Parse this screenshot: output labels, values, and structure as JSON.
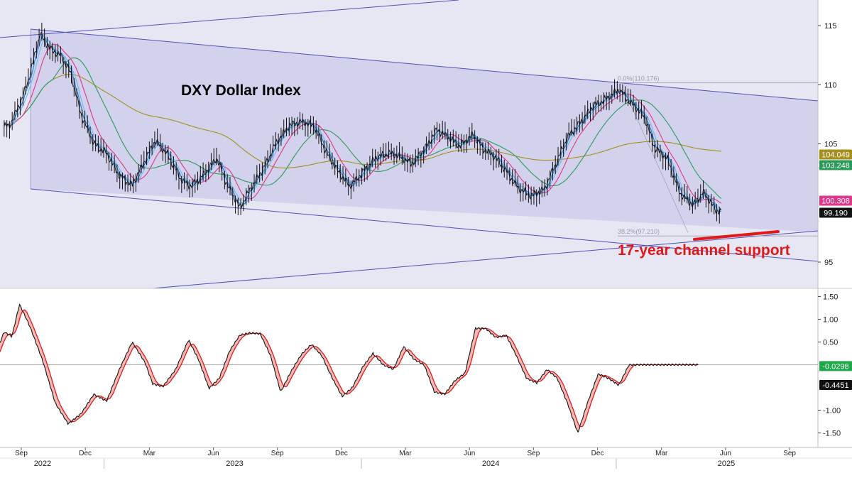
{
  "chart_data": [
    {
      "type": "line",
      "title": "DXY Dollar Index",
      "annotation": "17-year channel support",
      "ylim": [
        93,
        118
      ],
      "y_ticks": [
        115,
        110,
        105,
        95
      ],
      "last_value_labels": [
        {
          "text": "104.049",
          "value": 104.049,
          "bg": "#a68f1c",
          "fg": "#ffffff"
        },
        {
          "text": "103.248",
          "value": 103.248,
          "bg": "#2a9a5a",
          "fg": "#ffffff"
        },
        {
          "text": "100.308",
          "value": 100.308,
          "bg": "#e0358c",
          "fg": "#ffffff"
        },
        {
          "text": "99.190",
          "value": 99.19,
          "bg": "#111111",
          "fg": "#ffffff"
        }
      ],
      "fib_labels": [
        {
          "text": "0.0%(110.176)",
          "value": 110.176
        },
        {
          "text": "38.2%(97.210)",
          "value": 97.21
        }
      ],
      "price": {
        "x": [
          2022.62,
          2022.67,
          2022.7,
          2022.74,
          2022.78,
          2022.82,
          2022.86,
          2022.9,
          2022.95,
          2023.0,
          2023.05,
          2023.1,
          2023.14,
          2023.19,
          2023.24,
          2023.29,
          2023.33,
          2023.38,
          2023.43,
          2023.47,
          2023.52,
          2023.57,
          2023.62,
          2023.66,
          2023.71,
          2023.76,
          2023.81,
          2023.86,
          2023.9,
          2023.95,
          2024.0,
          2024.05,
          2024.1,
          2024.14,
          2024.19,
          2024.24,
          2024.29,
          2024.33,
          2024.38,
          2024.43,
          2024.47,
          2024.52,
          2024.57,
          2024.61,
          2024.66,
          2024.71,
          2024.76,
          2024.8,
          2024.85,
          2024.9,
          2024.95,
          2025.0,
          2025.02,
          2025.05,
          2025.1,
          2025.14,
          2025.19,
          2025.24,
          2025.29,
          2025.33,
          2025.38,
          2025.4
        ],
        "values": [
          106.5,
          108.8,
          110.8,
          114.3,
          113.0,
          112.5,
          111.0,
          107.5,
          105.0,
          104.2,
          102.3,
          101.5,
          103.2,
          105.3,
          104.0,
          102.0,
          101.4,
          102.4,
          103.8,
          101.6,
          99.6,
          101.5,
          103.2,
          105.0,
          106.5,
          106.9,
          106.5,
          104.2,
          102.8,
          101.4,
          102.6,
          103.8,
          104.2,
          104.0,
          103.3,
          104.5,
          106.2,
          105.6,
          104.8,
          105.8,
          104.6,
          103.8,
          102.4,
          101.2,
          100.6,
          101.2,
          103.6,
          105.6,
          106.8,
          108.2,
          108.8,
          109.6,
          109.1,
          108.4,
          107.3,
          104.7,
          103.7,
          100.8,
          99.8,
          100.9,
          99.4,
          99.19
        ]
      },
      "ma_blue_fast": {
        "name": "",
        "color": "#2f86d8",
        "last": 99.8
      },
      "ma_magenta": {
        "name": "",
        "color": "#e0358c",
        "last": 100.308
      },
      "ma_green": {
        "name": "",
        "color": "#2a9a5a",
        "last": 103.248
      },
      "ma_olive": {
        "name": "",
        "color": "#a68f1c",
        "last": 104.049
      },
      "oscillator": {
        "ylim": [
          -1.75,
          1.62
        ],
        "y_ticks": [
          1.5,
          1.0,
          0.5,
          -1.0,
          -1.5
        ],
        "y_tick_labels": [
          "1.50",
          "1.00",
          "0.50",
          "-1.00",
          "-1.50"
        ],
        "fast_last": {
          "text": "-0.0298",
          "value": -0.0298,
          "bg": "#1fa84a",
          "fg": "#ffffff"
        },
        "slow_last": {
          "text": "-0.4451",
          "value": -0.4451,
          "bg": "#111111",
          "fg": "#ffffff"
        },
        "x": [
          2022.55,
          2022.6,
          2022.63,
          2022.66,
          2022.7,
          2022.75,
          2022.8,
          2022.85,
          2022.9,
          2022.95,
          2023.0,
          2023.05,
          2023.1,
          2023.15,
          2023.18,
          2023.22,
          2023.27,
          2023.32,
          2023.36,
          2023.4,
          2023.44,
          2023.48,
          2023.52,
          2023.56,
          2023.6,
          2023.64,
          2023.68,
          2023.72,
          2023.76,
          2023.8,
          2023.84,
          2023.88,
          2023.92,
          2023.96,
          2024.0,
          2024.04,
          2024.08,
          2024.12,
          2024.16,
          2024.2,
          2024.24,
          2024.28,
          2024.32,
          2024.36,
          2024.4,
          2024.44,
          2024.48,
          2024.52,
          2024.56,
          2024.6,
          2024.64,
          2024.68,
          2024.72,
          2024.76,
          2024.8,
          2024.84,
          2024.88,
          2024.92,
          2024.96,
          2025.0,
          2025.04,
          2025.08,
          2025.12,
          2025.16,
          2025.2,
          2025.24,
          2025.28,
          2025.32,
          2025.36,
          2025.4
        ],
        "values": [
          0.0,
          0.72,
          0.62,
          1.33,
          0.85,
          0.1,
          -0.85,
          -1.3,
          -1.08,
          -0.65,
          -0.8,
          -0.1,
          0.5,
          0.05,
          -0.42,
          -0.48,
          -0.1,
          0.55,
          0.1,
          -0.52,
          -0.3,
          0.3,
          0.65,
          0.7,
          0.68,
          0.2,
          -0.6,
          -0.15,
          0.22,
          0.45,
          0.2,
          -0.28,
          -0.7,
          -0.5,
          -0.05,
          0.25,
          0.0,
          -0.1,
          0.4,
          0.12,
          0.0,
          -0.6,
          -0.65,
          -0.35,
          -0.18,
          0.8,
          0.8,
          0.6,
          0.65,
          0.2,
          -0.3,
          -0.4,
          -0.1,
          -0.3,
          -0.85,
          -1.5,
          -0.8,
          -0.2,
          -0.3,
          -0.45,
          0.0,
          0.0,
          0.0,
          0.0,
          0.0,
          0.0,
          0.0,
          0.0,
          0.0,
          0.0
        ]
      },
      "x_months": [
        {
          "label": "Sep",
          "t": 2022.667
        },
        {
          "label": "Dec",
          "t": 2022.917
        },
        {
          "label": "Mar",
          "t": 2023.167
        },
        {
          "label": "Jun",
          "t": 2023.417
        },
        {
          "label": "Sep",
          "t": 2023.667
        },
        {
          "label": "Dec",
          "t": 2023.917
        },
        {
          "label": "Mar",
          "t": 2024.167
        },
        {
          "label": "Jun",
          "t": 2024.417
        },
        {
          "label": "Sep",
          "t": 2024.667
        },
        {
          "label": "Dec",
          "t": 2024.917
        },
        {
          "label": "Mar",
          "t": 2025.167
        },
        {
          "label": "Jun",
          "t": 2025.417
        },
        {
          "label": "Sep",
          "t": 2025.667
        }
      ],
      "x_years": [
        {
          "label": "2022",
          "t": 2022.75
        },
        {
          "label": "2023",
          "t": 2023.5
        },
        {
          "label": "2024",
          "t": 2024.5
        },
        {
          "label": "2025",
          "t": 2025.42
        }
      ]
    }
  ]
}
